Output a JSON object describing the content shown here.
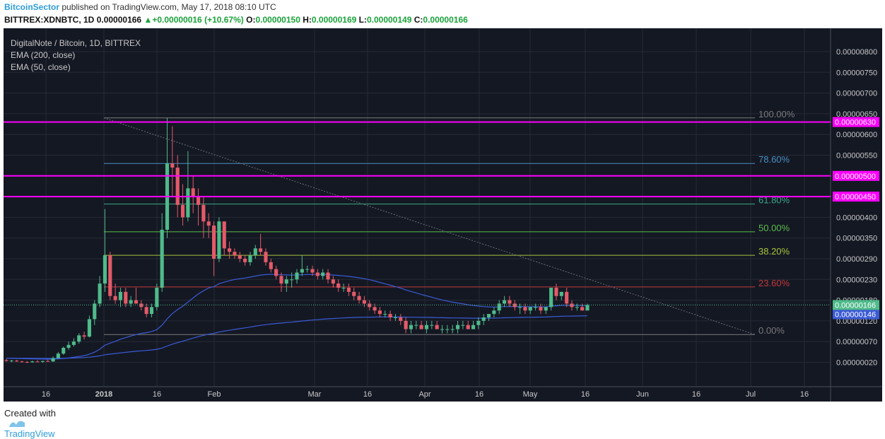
{
  "header": {
    "author": "BitcoinSector",
    "published_text": "published on TradingView.com, May 17, 2018 08:10 UTC",
    "symbol": "BITTREX:XDNBTC, 1D",
    "last": "0.00000166",
    "change": "+0.00000016 (+10.67%)",
    "o_label": "O:",
    "o_value": "0.00000150",
    "h_label": "H:",
    "h_value": "0.00000169",
    "l_label": "L:",
    "l_value": "0.00000149",
    "c_label": "C:",
    "c_value": "0.00000166",
    "up_arrow": "▲"
  },
  "legend": {
    "title": "DigitalNote / Bitcoin, 1D, BITTREX",
    "ema200": "EMA (200, close)",
    "ema50": "EMA (50, close)"
  },
  "footer": {
    "created_with": "Created with",
    "brand": "TradingView"
  },
  "colors": {
    "background": "#141823",
    "grid": "#262a36",
    "up": "#4fba8a",
    "down": "#e45a68",
    "magenta": "#ff00ff",
    "ema": "#3b5bd6"
  },
  "chart_data": {
    "type": "candlestick",
    "y_axis_ticks": [
      "0.00000800",
      "0.00000750",
      "0.00000700",
      "0.00000650",
      "0.00000600",
      "0.00000550",
      "0.00000500",
      "0.00000450",
      "0.00000400",
      "0.00000350",
      "0.00000290",
      "0.00000230",
      "0.00000180",
      "0.00000120",
      "0.00000070",
      "0.00000020"
    ],
    "x_axis_ticks": [
      "16",
      "2018",
      "16",
      "Feb",
      "Mar",
      "16",
      "Apr",
      "16",
      "May",
      "16",
      "Jun",
      "16",
      "Jul",
      "16"
    ],
    "horizontal_levels": [
      {
        "label": "0.00000630",
        "price": 6.3e-06,
        "color": "#ff00ff"
      },
      {
        "label": "0.00000500",
        "price": 5e-06,
        "color": "#ff00ff"
      },
      {
        "label": "0.00000450",
        "price": 4.5e-06,
        "color": "#ff00ff"
      }
    ],
    "fib_levels": [
      {
        "label": "100.00%",
        "price": 6.4e-06,
        "color": "#7a7a7a"
      },
      {
        "label": "78.60%",
        "price": 5.3e-06,
        "color": "#4a90c2"
      },
      {
        "label": "61.80%",
        "price": 4.32e-06,
        "color": "#3aa88a"
      },
      {
        "label": "50.00%",
        "price": 3.65e-06,
        "color": "#5cbd4c"
      },
      {
        "label": "38.20%",
        "price": 3e-06,
        "color": "#a8c43a"
      },
      {
        "label": "23.60%",
        "price": 2.12e-06,
        "color": "#c0393b"
      },
      {
        "label": "0.00%",
        "price": 8.7e-07,
        "color": "#7a7a7a"
      }
    ],
    "current_price": {
      "label": "0.00000166",
      "price": 1.66e-06
    },
    "ema200_value": {
      "label": "0.00000146",
      "price": 1.46e-06
    },
    "candles": [
      [
        2.5e-07,
        2.8e-07,
        2.2e-07,
        2.3e-07
      ],
      [
        2.3e-07,
        2.6e-07,
        2e-07,
        2.4e-07
      ],
      [
        2.4e-07,
        2.6e-07,
        2.1e-07,
        2.2e-07
      ],
      [
        2.2e-07,
        2.4e-07,
        1.9e-07,
        2.1e-07
      ],
      [
        2.1e-07,
        2.3e-07,
        1.8e-07,
        2e-07
      ],
      [
        2e-07,
        2.4e-07,
        1.9e-07,
        2.2e-07
      ],
      [
        2.2e-07,
        2.5e-07,
        2e-07,
        2.1e-07
      ],
      [
        2.1e-07,
        2.4e-07,
        1.9e-07,
        2.3e-07
      ],
      [
        2.3e-07,
        2.6e-07,
        2.1e-07,
        2.2e-07
      ],
      [
        2.2e-07,
        3.4e-07,
        2.1e-07,
        3e-07
      ],
      [
        3e-07,
        4.5e-07,
        2.9e-07,
        4.1e-07
      ],
      [
        4.1e-07,
        5.8e-07,
        3.8e-07,
        5.5e-07
      ],
      [
        5.5e-07,
        7e-07,
        5e-07,
        6.2e-07
      ],
      [
        6.2e-07,
        7.8e-07,
        5.8e-07,
        7e-07
      ],
      [
        7e-07,
        9e-07,
        6.5e-07,
        8.5e-07
      ],
      [
        8.5e-07,
        9.4e-07,
        7.5e-07,
        8.2e-07
      ],
      [
        8.2e-07,
        1.35e-06,
        8e-07,
        1.25e-06
      ],
      [
        1.25e-06,
        1.8e-06,
        1.1e-06,
        1.7e-06
      ],
      [
        1.7e-06,
        2.4e-06,
        1.6e-06,
        2.2e-06
      ],
      [
        2.2e-06,
        4.2e-06,
        2e-06,
        3e-06
      ],
      [
        3e-06,
        3.1e-06,
        1.8e-06,
        1.9e-06
      ],
      [
        1.9e-06,
        2.2e-06,
        1.7e-06,
        1.8e-06
      ],
      [
        1.8e-06,
        2.1e-06,
        1.6e-06,
        2e-06
      ],
      [
        2e-06,
        2.1e-06,
        1.6e-06,
        1.7e-06
      ],
      [
        1.7e-06,
        1.9e-06,
        1.6e-06,
        1.8e-06
      ],
      [
        1.8e-06,
        2.1e-06,
        1.7e-06,
        1.7e-06
      ],
      [
        1.7e-06,
        1.8e-06,
        1.5e-06,
        1.6e-06
      ],
      [
        1.6e-06,
        1.7e-06,
        1.3e-06,
        1.4e-06
      ],
      [
        1.4e-06,
        1.7e-06,
        1.3e-06,
        1.6e-06
      ],
      [
        1.6e-06,
        2.2e-06,
        1.5e-06,
        2.1e-06
      ],
      [
        2.1e-06,
        4.1e-06,
        2e-06,
        3.7e-06
      ],
      [
        3.7e-06,
        6.4e-06,
        3.5e-06,
        5.3e-06
      ],
      [
        5.3e-06,
        6.2e-06,
        4.5e-06,
        5.2e-06
      ],
      [
        5.2e-06,
        5.5e-06,
        4e-06,
        4.3e-06
      ],
      [
        4.3e-06,
        4.8e-06,
        3.8e-06,
        4e-06
      ],
      [
        4e-06,
        5.6e-06,
        3.9e-06,
        4.7e-06
      ],
      [
        4.7e-06,
        5e-06,
        4.1e-06,
        4.5e-06
      ],
      [
        4.5e-06,
        4.7e-06,
        3.8e-06,
        4.3e-06
      ],
      [
        4.3e-06,
        4.5e-06,
        3.5e-06,
        3.9e-06
      ],
      [
        3.9e-06,
        4.1e-06,
        3.5e-06,
        3.8e-06
      ],
      [
        3.8e-06,
        3.9e-06,
        2.4e-06,
        2.9e-06
      ],
      [
        2.9e-06,
        4e-06,
        2.8e-06,
        3.9e-06
      ],
      [
        3.9e-06,
        3.9e-06,
        3e-06,
        3.2e-06
      ],
      [
        3.2e-06,
        3.4e-06,
        2.9e-06,
        3.1e-06
      ],
      [
        3.1e-06,
        3.2e-06,
        2.9e-06,
        3e-06
      ],
      [
        3e-06,
        3.1e-06,
        2.8e-06,
        2.9e-06
      ],
      [
        2.9e-06,
        3e-06,
        2.7e-06,
        2.8e-06
      ],
      [
        2.8e-06,
        3.1e-06,
        2.7e-06,
        3e-06
      ],
      [
        3e-06,
        3.3e-06,
        2.9e-06,
        3.2e-06
      ],
      [
        3.2e-06,
        3.6e-06,
        3e-06,
        3.1e-06
      ],
      [
        3.1e-06,
        3.2e-06,
        2.7e-06,
        2.8e-06
      ],
      [
        2.8e-06,
        2.9e-06,
        2.5e-06,
        2.6e-06
      ],
      [
        2.6e-06,
        2.7e-06,
        2.3e-06,
        2.4e-06
      ],
      [
        2.4e-06,
        2.5e-06,
        2e-06,
        2.2e-06
      ],
      [
        2.2e-06,
        2.4e-06,
        2e-06,
        2.3e-06
      ],
      [
        2.3e-06,
        2.5e-06,
        2.1e-06,
        2.3e-06
      ],
      [
        2.3e-06,
        2.6e-06,
        2.2e-06,
        2.5e-06
      ],
      [
        2.5e-06,
        3e-06,
        2.4e-06,
        2.6e-06
      ],
      [
        2.6e-06,
        2.7e-06,
        2.5e-06,
        2.6e-06
      ],
      [
        2.6e-06,
        2.7e-06,
        2.4e-06,
        2.5e-06
      ],
      [
        2.5e-06,
        2.6e-06,
        2.3e-06,
        2.4e-06
      ],
      [
        2.4e-06,
        2.6e-06,
        2.3e-06,
        2.5e-06
      ],
      [
        2.5e-06,
        2.6e-06,
        2.2e-06,
        2.3e-06
      ],
      [
        2.3e-06,
        2.4e-06,
        2.1e-06,
        2.2e-06
      ],
      [
        2.2e-06,
        2.3e-06,
        2e-06,
        2.1e-06
      ],
      [
        2.1e-06,
        2.2e-06,
        2e-06,
        2.1e-06
      ],
      [
        2.1e-06,
        2.2e-06,
        1.9e-06,
        2e-06
      ],
      [
        2e-06,
        2.1e-06,
        1.8e-06,
        1.9e-06
      ],
      [
        1.9e-06,
        2e-06,
        1.7e-06,
        1.8e-06
      ],
      [
        1.8e-06,
        1.9e-06,
        1.6e-06,
        1.7e-06
      ],
      [
        1.7e-06,
        1.8e-06,
        1.5e-06,
        1.6e-06
      ],
      [
        1.6e-06,
        1.7e-06,
        1.4e-06,
        1.5e-06
      ],
      [
        1.5e-06,
        1.6e-06,
        1.3e-06,
        1.4e-06
      ],
      [
        1.4e-06,
        1.5e-06,
        1.3e-06,
        1.4e-06
      ],
      [
        1.4e-06,
        1.5e-06,
        1.2e-06,
        1.3e-06
      ],
      [
        1.3e-06,
        1.4e-06,
        1.2e-06,
        1.3e-06
      ],
      [
        1.3e-06,
        1.4e-06,
        1.1e-06,
        1.2e-06
      ],
      [
        1.2e-06,
        1.3e-06,
        9e-07,
        1e-06
      ],
      [
        1e-06,
        1.2e-06,
        9e-07,
        1.1e-06
      ],
      [
        1.1e-06,
        1.2e-06,
        1e-06,
        1.1e-06
      ],
      [
        1.1e-06,
        1.2e-06,
        1e-06,
        1e-06
      ],
      [
        1e-06,
        1.2e-06,
        9e-07,
        1.1e-06
      ],
      [
        1.1e-06,
        1.2e-06,
        1e-06,
        1.1e-06
      ],
      [
        1.1e-06,
        1.2e-06,
        1e-06,
        1e-06
      ],
      [
        1e-06,
        1.1e-06,
        9e-07,
        1e-06
      ],
      [
        1e-06,
        1.1e-06,
        9e-07,
        1e-06
      ],
      [
        1e-06,
        1.1e-06,
        9e-07,
        1e-06
      ],
      [
        1e-06,
        1.2e-06,
        9e-07,
        1.1e-06
      ],
      [
        1.1e-06,
        1.2e-06,
        1e-06,
        1.1e-06
      ],
      [
        1.1e-06,
        1.2e-06,
        1e-06,
        1e-06
      ],
      [
        1e-06,
        1.2e-06,
        1e-06,
        1.1e-06
      ],
      [
        1.1e-06,
        1.3e-06,
        1e-06,
        1.2e-06
      ],
      [
        1.2e-06,
        1.4e-06,
        1.1e-06,
        1.3e-06
      ],
      [
        1.3e-06,
        1.4e-06,
        1.2e-06,
        1.4e-06
      ],
      [
        1.4e-06,
        1.6e-06,
        1.3e-06,
        1.5e-06
      ],
      [
        1.5e-06,
        1.8e-06,
        1.4e-06,
        1.7e-06
      ],
      [
        1.7e-06,
        1.9e-06,
        1.6e-06,
        1.8e-06
      ],
      [
        1.8e-06,
        1.9e-06,
        1.6e-06,
        1.7e-06
      ],
      [
        1.7e-06,
        1.8e-06,
        1.5e-06,
        1.6e-06
      ],
      [
        1.6e-06,
        1.7e-06,
        1.4e-06,
        1.6e-06
      ],
      [
        1.6e-06,
        1.7e-06,
        1.4e-06,
        1.5e-06
      ],
      [
        1.5e-06,
        1.6e-06,
        1.4e-06,
        1.6e-06
      ],
      [
        1.6e-06,
        1.7e-06,
        1.5e-06,
        1.6e-06
      ],
      [
        1.6e-06,
        1.7e-06,
        1.4e-06,
        1.5e-06
      ],
      [
        1.5e-06,
        1.6e-06,
        1.4e-06,
        1.6e-06
      ],
      [
        1.6e-06,
        2.1e-06,
        1.5e-06,
        2.1e-06
      ],
      [
        2.1e-06,
        2.2e-06,
        1.8e-06,
        1.9e-06
      ],
      [
        1.9e-06,
        2e-06,
        1.8e-06,
        2e-06
      ],
      [
        2e-06,
        2.1e-06,
        1.6e-06,
        1.7e-06
      ],
      [
        1.7e-06,
        1.8e-06,
        1.5e-06,
        1.6e-06
      ],
      [
        1.6e-06,
        1.7e-06,
        1.5e-06,
        1.6e-06
      ],
      [
        1.6e-06,
        1.7e-06,
        1.5e-06,
        1.5e-06
      ],
      [
        1.5e-06,
        1.7e-06,
        1.5e-06,
        1.66e-06
      ]
    ]
  }
}
